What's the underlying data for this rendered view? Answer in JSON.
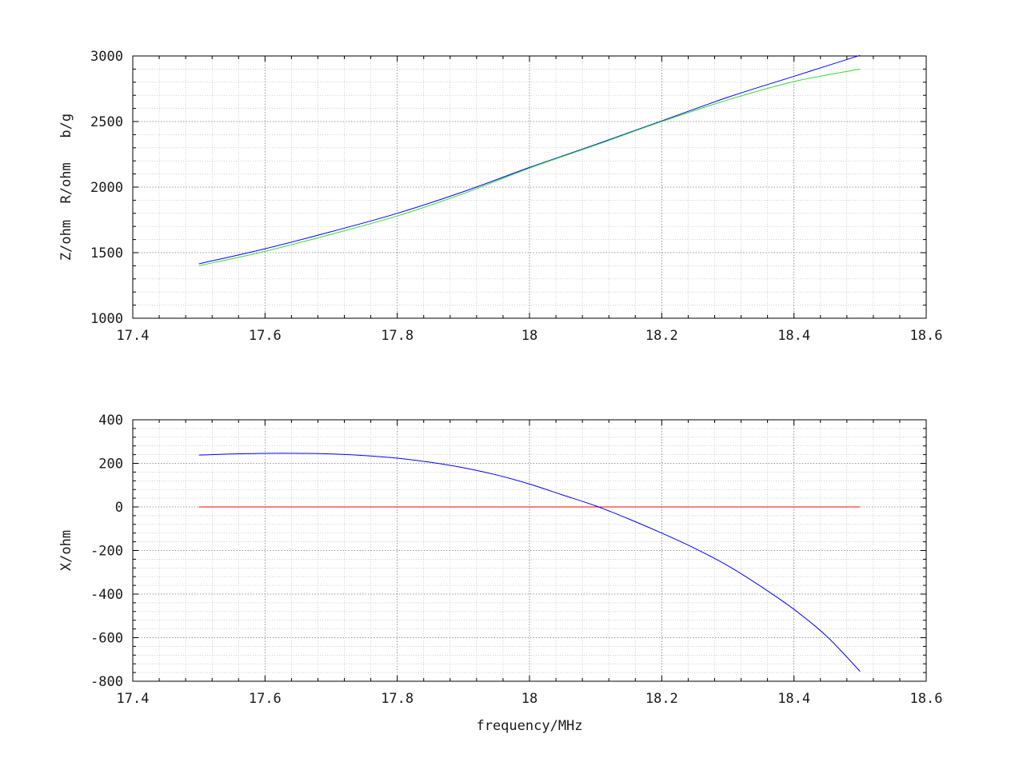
{
  "chart_data": [
    {
      "type": "line",
      "id": "top",
      "title": "",
      "xlabel": "",
      "ylabel": "Z/ohm  R/ohm   b/g",
      "xlim": [
        17.4,
        18.6
      ],
      "ylim": [
        1000,
        3000
      ],
      "xticks": [
        17.4,
        17.6,
        17.8,
        18.0,
        18.2,
        18.4,
        18.6
      ],
      "xtick_labels": [
        "17.4",
        "17.6",
        "17.8",
        "18",
        "18.2",
        "18.4",
        "18.6"
      ],
      "yticks": [
        1000,
        1500,
        2000,
        2500,
        3000
      ],
      "ytick_labels": [
        "1000",
        "1500",
        "2000",
        "2500",
        "3000"
      ],
      "x_minor_step": 0.04,
      "y_minor_step": 100,
      "grid": true,
      "series": [
        {
          "color": "#0000ff",
          "x": [
            17.5,
            17.6,
            17.7,
            17.8,
            17.9,
            18.0,
            18.1,
            18.2,
            18.3,
            18.4,
            18.5
          ],
          "y": [
            1415,
            1530,
            1660,
            1800,
            1965,
            2150,
            2325,
            2505,
            2685,
            2845,
            3005
          ]
        },
        {
          "color": "#33dd33",
          "x": [
            17.5,
            17.6,
            17.7,
            17.8,
            17.9,
            18.0,
            18.1,
            18.2,
            18.3,
            18.4,
            18.5
          ],
          "y": [
            1400,
            1510,
            1640,
            1780,
            1950,
            2145,
            2320,
            2500,
            2665,
            2805,
            2900
          ]
        }
      ]
    },
    {
      "type": "line",
      "id": "bottom",
      "title": "",
      "xlabel": "frequency/MHz",
      "ylabel": "X/ohm",
      "xlim": [
        17.4,
        18.6
      ],
      "ylim": [
        -800,
        400
      ],
      "xticks": [
        17.4,
        17.6,
        17.8,
        18.0,
        18.2,
        18.4,
        18.6
      ],
      "xtick_labels": [
        "17.4",
        "17.6",
        "17.8",
        "18",
        "18.2",
        "18.4",
        "18.6"
      ],
      "yticks": [
        -800,
        -600,
        -400,
        -200,
        0,
        200,
        400
      ],
      "ytick_labels": [
        "-800",
        "-600",
        "-400",
        "-200",
        "0",
        "200",
        "400"
      ],
      "x_minor_step": 0.04,
      "y_minor_step": 40,
      "grid": true,
      "series": [
        {
          "color": "#ff0000",
          "x": [
            17.5,
            18.5
          ],
          "y": [
            0,
            0
          ]
        },
        {
          "color": "#0000ff",
          "x": [
            17.5,
            17.55,
            17.6,
            17.65,
            17.7,
            17.75,
            17.8,
            17.85,
            17.9,
            17.95,
            18.0,
            18.05,
            18.1,
            18.15,
            18.2,
            18.25,
            18.3,
            18.35,
            18.4,
            18.45,
            18.5
          ],
          "y": [
            238,
            243,
            246,
            246,
            243,
            236,
            224,
            205,
            180,
            147,
            105,
            55,
            5,
            -55,
            -120,
            -190,
            -270,
            -365,
            -470,
            -595,
            -755
          ]
        }
      ]
    }
  ]
}
